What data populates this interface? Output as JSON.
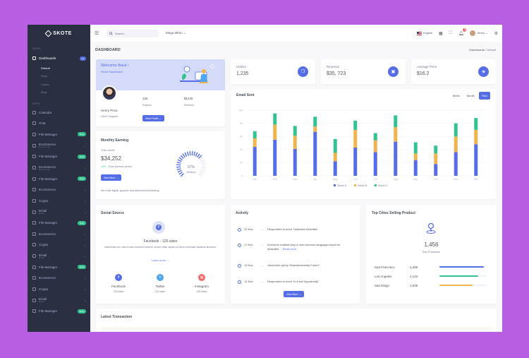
{
  "sidebar": {
    "logo": "SKOTE",
    "section_menu": "MENU",
    "dashboards": "Dashboards",
    "dashboards_badge": "04",
    "subitems": [
      "Default",
      "Saas",
      "Crypto",
      "Blog"
    ],
    "section_apps": "APPS",
    "items": [
      {
        "label": "Calendar",
        "badge": "",
        "chev": false
      },
      {
        "label": "Chat",
        "badge": "",
        "chev": false
      },
      {
        "label": "File Manager",
        "badge": "New",
        "chev": false
      },
      {
        "label": "Ecommerce",
        "sub": "Ecommerce",
        "badge": "",
        "chev": true
      },
      {
        "label": "File Manager",
        "badge": "New",
        "chev": false
      },
      {
        "label": "Ecommerce",
        "sub": "Ecommerce",
        "badge": "",
        "chev": true
      },
      {
        "label": "File Manager",
        "badge": "New",
        "chev": false
      },
      {
        "label": "Ecommerce",
        "badge": "",
        "chev": true
      },
      {
        "label": "Crypto",
        "badge": "",
        "chev": true
      },
      {
        "label": "Email",
        "sub": "Email",
        "badge": "",
        "chev": true
      },
      {
        "label": "File Manager",
        "badge": "New",
        "chev": false
      },
      {
        "label": "Ecommerce",
        "badge": "",
        "chev": true
      },
      {
        "label": "Crypto",
        "badge": "",
        "chev": true
      },
      {
        "label": "Email",
        "sub": "Email",
        "badge": "",
        "chev": true
      },
      {
        "label": "File Manager",
        "badge": "New",
        "chev": false
      },
      {
        "label": "Ecommerce",
        "badge": "",
        "chev": true
      },
      {
        "label": "Crypto",
        "badge": "",
        "chev": true
      },
      {
        "label": "Email",
        "sub": "Email",
        "badge": "",
        "chev": true
      },
      {
        "label": "File Manager",
        "badge": "New",
        "chev": false
      }
    ]
  },
  "topbar": {
    "search_placeholder": "Search...",
    "mega_menu": "Mega Menu",
    "language": "English",
    "notif_count": "3",
    "user": "Henry"
  },
  "page": {
    "title": "DASHBOARD",
    "crumb_parent": "Dashboards",
    "crumb_current": "Default"
  },
  "welcome": {
    "title": "Welcome Back !",
    "subtitle": "Skote Dashboard",
    "name": "Henry Price",
    "role": "UI/UX Designer",
    "projects_value": "125",
    "projects_label": "Projects",
    "revenue_value": "$1245",
    "revenue_label": "Revenue",
    "button": "View Profile"
  },
  "monthly": {
    "title": "Monthly Earning",
    "period_label": "This month",
    "value": "$34,252",
    "change": "12%",
    "change_text": "From previous period",
    "gauge_value": "67%",
    "gauge_percent": 67,
    "gauge_label": "Series A",
    "button": "View More",
    "note": "We craft digital, graphic and dimensional thinking."
  },
  "stats": [
    {
      "label": "Orders",
      "value": "1,235",
      "icon": "copy-icon"
    },
    {
      "label": "Revenue",
      "value": "$35, 723",
      "icon": "archive-icon"
    },
    {
      "label": "Average Price",
      "value": "$16.2",
      "icon": "tag-icon"
    }
  ],
  "email": {
    "title": "Email Sent",
    "tabs": [
      "Week",
      "Month",
      "Year"
    ],
    "active_tab": "Year"
  },
  "chart_data": {
    "type": "bar",
    "stacked": true,
    "categories": [
      "Jan",
      "Feb",
      "Mar",
      "Apr",
      "May",
      "Jun",
      "Jul",
      "Aug",
      "Sep",
      "Oct",
      "Nov",
      "Dec"
    ],
    "series": [
      {
        "name": "Series A",
        "color": "#556ee6",
        "values": [
          44,
          55,
          41,
          67,
          22,
          43,
          36,
          52,
          24,
          18,
          36,
          48
        ]
      },
      {
        "name": "Series B",
        "color": "#f1b44c",
        "values": [
          13,
          23,
          20,
          8,
          13,
          27,
          18,
          22,
          10,
          16,
          24,
          22
        ]
      },
      {
        "name": "Series C",
        "color": "#34c38f",
        "values": [
          11,
          17,
          15,
          15,
          21,
          14,
          11,
          18,
          17,
          12,
          20,
          18
        ]
      }
    ],
    "ylim": [
      0,
      100
    ],
    "yticks": [
      0,
      20,
      40,
      60,
      80,
      100
    ],
    "grid": true,
    "legend": "bottom-center"
  },
  "social": {
    "title": "Social Source",
    "headline": "Facebook - 125 sales",
    "text": "Maecenas nec odio et ante tincidunt tempus. Donec vitae sapien ut libero venenatis faucibus tincidunt.",
    "learn_more": "Learn more",
    "sources": [
      {
        "name": "Facebook",
        "sales": "125 sales",
        "color": "#556ee6",
        "glyph": "f"
      },
      {
        "name": "Twitter",
        "sales": "112 sales",
        "color": "#50a5f1",
        "glyph": "t"
      },
      {
        "name": "Instagram",
        "sales": "104 sales",
        "color": "#f46a6a",
        "glyph": "◎"
      }
    ]
  },
  "activity": {
    "title": "Activity",
    "items": [
      {
        "date": "22 Nov",
        "text": "Responded to need “Volunteer Activities"
      },
      {
        "date": "17 Nov",
        "text": "Everyone realizes why a new common language would be desirable...",
        "link": "Read more"
      },
      {
        "date": "15 Nov",
        "text": "Joined the group “Boardsmanship Forum”"
      },
      {
        "date": "12 Nov",
        "text": "Responded to need “In-Kind Opportunity”"
      }
    ],
    "button": "View More"
  },
  "cities": {
    "title": "Top Cities Selling Product",
    "top_value": "1,456",
    "top_city": "San Francisco",
    "rows": [
      {
        "city": "San Francisco",
        "value": "1,456",
        "pct": 0.94,
        "color": "#556ee6"
      },
      {
        "city": "Los Angeles",
        "value": "1,123",
        "pct": 0.82,
        "color": "#34c38f"
      },
      {
        "city": "San Diego",
        "value": "1,026",
        "pct": 0.7,
        "color": "#f1b44c"
      }
    ]
  },
  "transactions": {
    "title": "Latest Transaction"
  }
}
